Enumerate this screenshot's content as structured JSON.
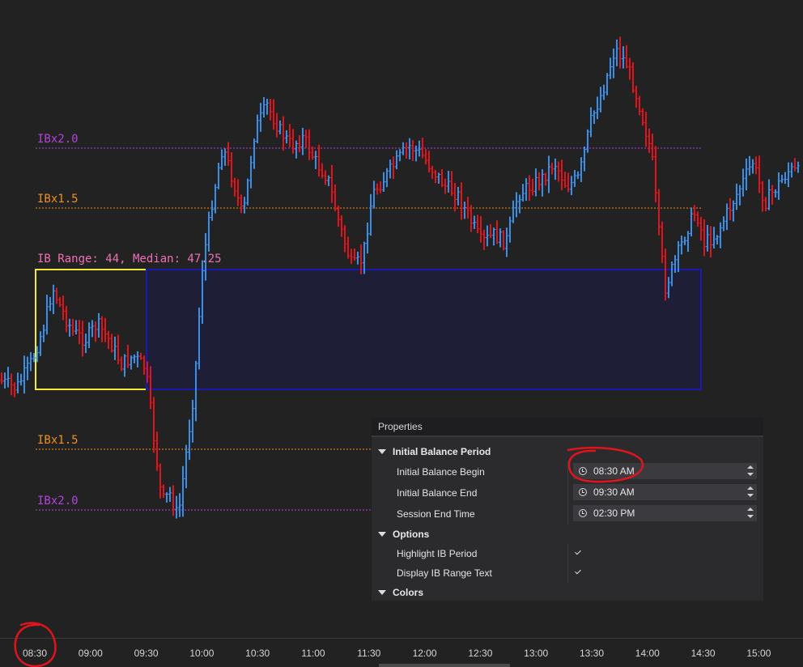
{
  "levels": {
    "ibx2_upper": "IBx2.0",
    "ibx15_upper": "IBx1.5",
    "ibx15_lower": "IBx1.5",
    "ibx2_lower": "IBx2.0",
    "range_text": "IB Range: 44, Median: 47.25"
  },
  "colors": {
    "up_bar": "#3a8ee6",
    "down_bar": "#e0141c",
    "ibx2": "#b442e0",
    "ibx15": "#f0901e",
    "range_text": "#f070b8",
    "ib_box": "#f4e93a",
    "projection_box": "#1a1ab0",
    "annotation": "#e0141c"
  },
  "time_axis": [
    "08:30",
    "09:00",
    "09:30",
    "10:00",
    "10:30",
    "11:00",
    "11:30",
    "12:00",
    "12:30",
    "13:00",
    "13:30",
    "14:00",
    "14:30",
    "15:00"
  ],
  "properties": {
    "title": "Properties",
    "categories": {
      "initial_balance_period": "Initial Balance Period",
      "options": "Options",
      "colors": "Colors"
    },
    "ib_begin": {
      "label": "Initial Balance Begin",
      "value": "08:30 AM"
    },
    "ib_end": {
      "label": "Initial Balance End",
      "value": "09:30 AM"
    },
    "session_end": {
      "label": "Session End Time",
      "value": "02:30 PM"
    },
    "highlight_ib": {
      "label": "Highlight IB Period",
      "checked": true
    },
    "display_range": {
      "label": "Display IB Range Text",
      "checked": true
    }
  }
}
